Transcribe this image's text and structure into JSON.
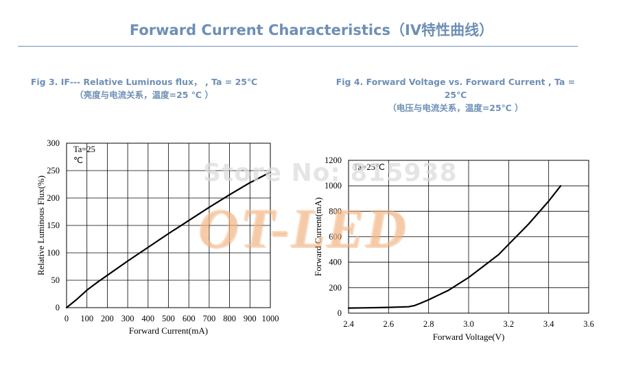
{
  "header": {
    "title": "Forward Current Characteristics（IV特性曲线）"
  },
  "colors": {
    "title_color": "#6d8fb5",
    "grid_color": "#000000",
    "curve_color": "#000000"
  },
  "watermark": {
    "store": "Store No: 815938",
    "logo": "OT-LED"
  },
  "chart_data": [
    {
      "type": "line",
      "title": "Fig 3. IF--- Relative Luminous flux，  , Ta = 25℃",
      "subtitle": "（亮度与电流关系，温度=25 ℃ ）",
      "annotation": [
        "Ta=25",
        "℃"
      ],
      "xlabel": "Forward Current(mA)",
      "ylabel": "Relative Luminous Flux(%)",
      "xlim": [
        0,
        1000
      ],
      "ylim": [
        0,
        300
      ],
      "xticks": [
        "0",
        "100",
        "200",
        "300",
        "400",
        "500",
        "600",
        "700",
        "800",
        "900",
        "1000"
      ],
      "yticks": [
        "0",
        "50",
        "100",
        "150",
        "200",
        "250",
        "300"
      ],
      "grid": true,
      "series": [
        {
          "x": [
            0,
            50,
            100,
            150,
            200,
            300,
            400,
            500,
            600,
            700,
            800,
            900,
            1000
          ],
          "y": [
            0,
            15,
            32,
            46,
            59,
            85,
            110,
            135,
            159,
            183,
            206,
            228,
            247
          ]
        }
      ]
    },
    {
      "type": "line",
      "title": "Fig 4. Forward Voltage vs. Forward Current , Ta = 25℃",
      "subtitle": "（电压与电流关系，温度=25℃ ）",
      "annotation": [
        "Ta=25℃"
      ],
      "xlabel": "Forward Voltage(V)",
      "ylabel": "Forward Current(mA)",
      "xlim": [
        2.4,
        3.6
      ],
      "ylim": [
        0,
        1200
      ],
      "xticks": [
        "2.4",
        "2.6",
        "2.8",
        "3.0",
        "3.2",
        "3.4",
        "3.6"
      ],
      "yticks": [
        "0",
        "200",
        "400",
        "600",
        "800",
        "1000",
        "1200"
      ],
      "grid": true,
      "series": [
        {
          "x": [
            2.4,
            2.5,
            2.6,
            2.7,
            2.73,
            2.76,
            2.8,
            2.9,
            3.0,
            3.1,
            3.15,
            3.2,
            3.3,
            3.4,
            3.46
          ],
          "y": [
            40,
            42,
            45,
            50,
            60,
            78,
            105,
            180,
            280,
            400,
            460,
            540,
            700,
            880,
            1000
          ]
        }
      ]
    }
  ]
}
